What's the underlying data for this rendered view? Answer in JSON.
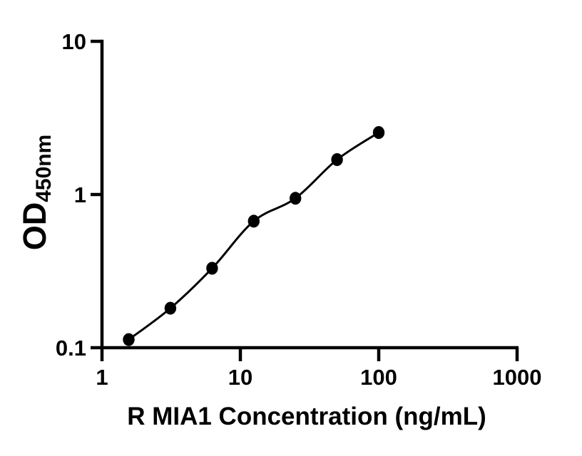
{
  "figure": {
    "background_color": "#ffffff",
    "foreground_color": "#000000"
  },
  "chart_data": {
    "type": "scatter",
    "title": "",
    "xlabel": "R MIA1 Concentration (ng/mL)",
    "ylabel": "OD",
    "ylabel_subscript": "450nm",
    "x_scale": "log10",
    "y_scale": "log10",
    "xlim": [
      1,
      1000
    ],
    "ylim": [
      0.1,
      10
    ],
    "grid": false,
    "legend_position": "none",
    "x_ticks": [
      {
        "value": 1,
        "label": "1"
      },
      {
        "value": 10,
        "label": "10"
      },
      {
        "value": 100,
        "label": "100"
      },
      {
        "value": 1000,
        "label": "1000"
      }
    ],
    "y_ticks": [
      {
        "value": 0.1,
        "label": "0.1"
      },
      {
        "value": 1,
        "label": "1"
      },
      {
        "value": 10,
        "label": "10"
      }
    ],
    "series": [
      {
        "name": "standard-curve",
        "marker": "filled-circle",
        "line": "smooth-fit",
        "color": "#000000",
        "points": [
          {
            "x": 1.56,
            "y": 0.113
          },
          {
            "x": 3.12,
            "y": 0.181
          },
          {
            "x": 6.25,
            "y": 0.33
          },
          {
            "x": 12.5,
            "y": 0.67
          },
          {
            "x": 25,
            "y": 0.945
          },
          {
            "x": 50,
            "y": 1.69
          },
          {
            "x": 100,
            "y": 2.54
          }
        ]
      }
    ]
  }
}
